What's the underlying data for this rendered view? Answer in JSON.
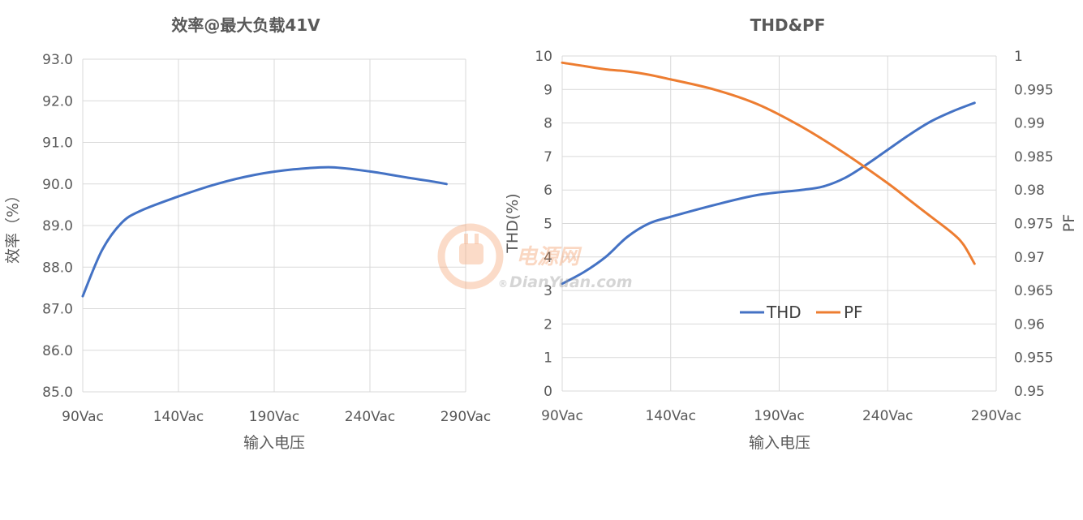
{
  "chart_data": [
    {
      "type": "line",
      "title": "效率@最大负载41V",
      "xlabel": "输入电压",
      "ylabel": "效率（%）",
      "xlim": [
        90,
        290
      ],
      "ylim": [
        85,
        93
      ],
      "x_ticks": [
        "90Vac",
        "140Vac",
        "190Vac",
        "240Vac",
        "290Vac"
      ],
      "y_ticks": [
        "85.0",
        "86.0",
        "87.0",
        "88.0",
        "89.0",
        "90.0",
        "91.0",
        "92.0",
        "93.0"
      ],
      "grid": true,
      "series": [
        {
          "color": "#4472c4",
          "x": [
            90,
            100,
            110,
            120,
            140,
            160,
            180,
            200,
            220,
            240,
            260,
            270,
            280
          ],
          "y": [
            87.3,
            88.4,
            89.05,
            89.35,
            89.7,
            90.0,
            90.22,
            90.35,
            90.4,
            90.3,
            90.15,
            90.08,
            90.0
          ]
        }
      ]
    },
    {
      "type": "line",
      "title": "THD&PF",
      "xlabel": "输入电压",
      "ylabel": "THD(%)",
      "y2label": "PF",
      "xlim": [
        90,
        290
      ],
      "ylim": [
        0,
        10
      ],
      "y2lim": [
        0.95,
        1.0
      ],
      "x_ticks": [
        "90Vac",
        "140Vac",
        "190Vac",
        "240Vac",
        "290Vac"
      ],
      "y_ticks": [
        "0",
        "1",
        "2",
        "3",
        "4",
        "5",
        "6",
        "7",
        "8",
        "9",
        "10"
      ],
      "y2_ticks": [
        "0.95",
        "0.955",
        "0.96",
        "0.965",
        "0.97",
        "0.975",
        "0.98",
        "0.985",
        "0.99",
        "0.995",
        "1"
      ],
      "grid": true,
      "legend": "inside-bottom-center",
      "series": [
        {
          "name": "THD",
          "axis": "left",
          "color": "#4472c4",
          "x": [
            90,
            100,
            110,
            120,
            130,
            140,
            160,
            180,
            200,
            210,
            220,
            230,
            240,
            250,
            260,
            270,
            280
          ],
          "y": [
            3.2,
            3.55,
            4.0,
            4.6,
            5.0,
            5.2,
            5.55,
            5.85,
            6.0,
            6.1,
            6.35,
            6.75,
            7.2,
            7.65,
            8.05,
            8.35,
            8.6
          ]
        },
        {
          "name": "PF",
          "axis": "right",
          "color": "#ed7d31",
          "x": [
            90,
            100,
            110,
            120,
            130,
            140,
            160,
            180,
            200,
            220,
            240,
            250,
            260,
            270,
            275,
            280
          ],
          "y": [
            0.999,
            0.9985,
            0.998,
            0.9977,
            0.9972,
            0.9965,
            0.995,
            0.9928,
            0.9895,
            0.9855,
            0.981,
            0.9785,
            0.976,
            0.9735,
            0.9718,
            0.969
          ]
        }
      ]
    }
  ],
  "watermark": {
    "main": "电源网",
    "sub": "DianYuan.com",
    "reg": "®",
    "color": "#f08a4b"
  }
}
